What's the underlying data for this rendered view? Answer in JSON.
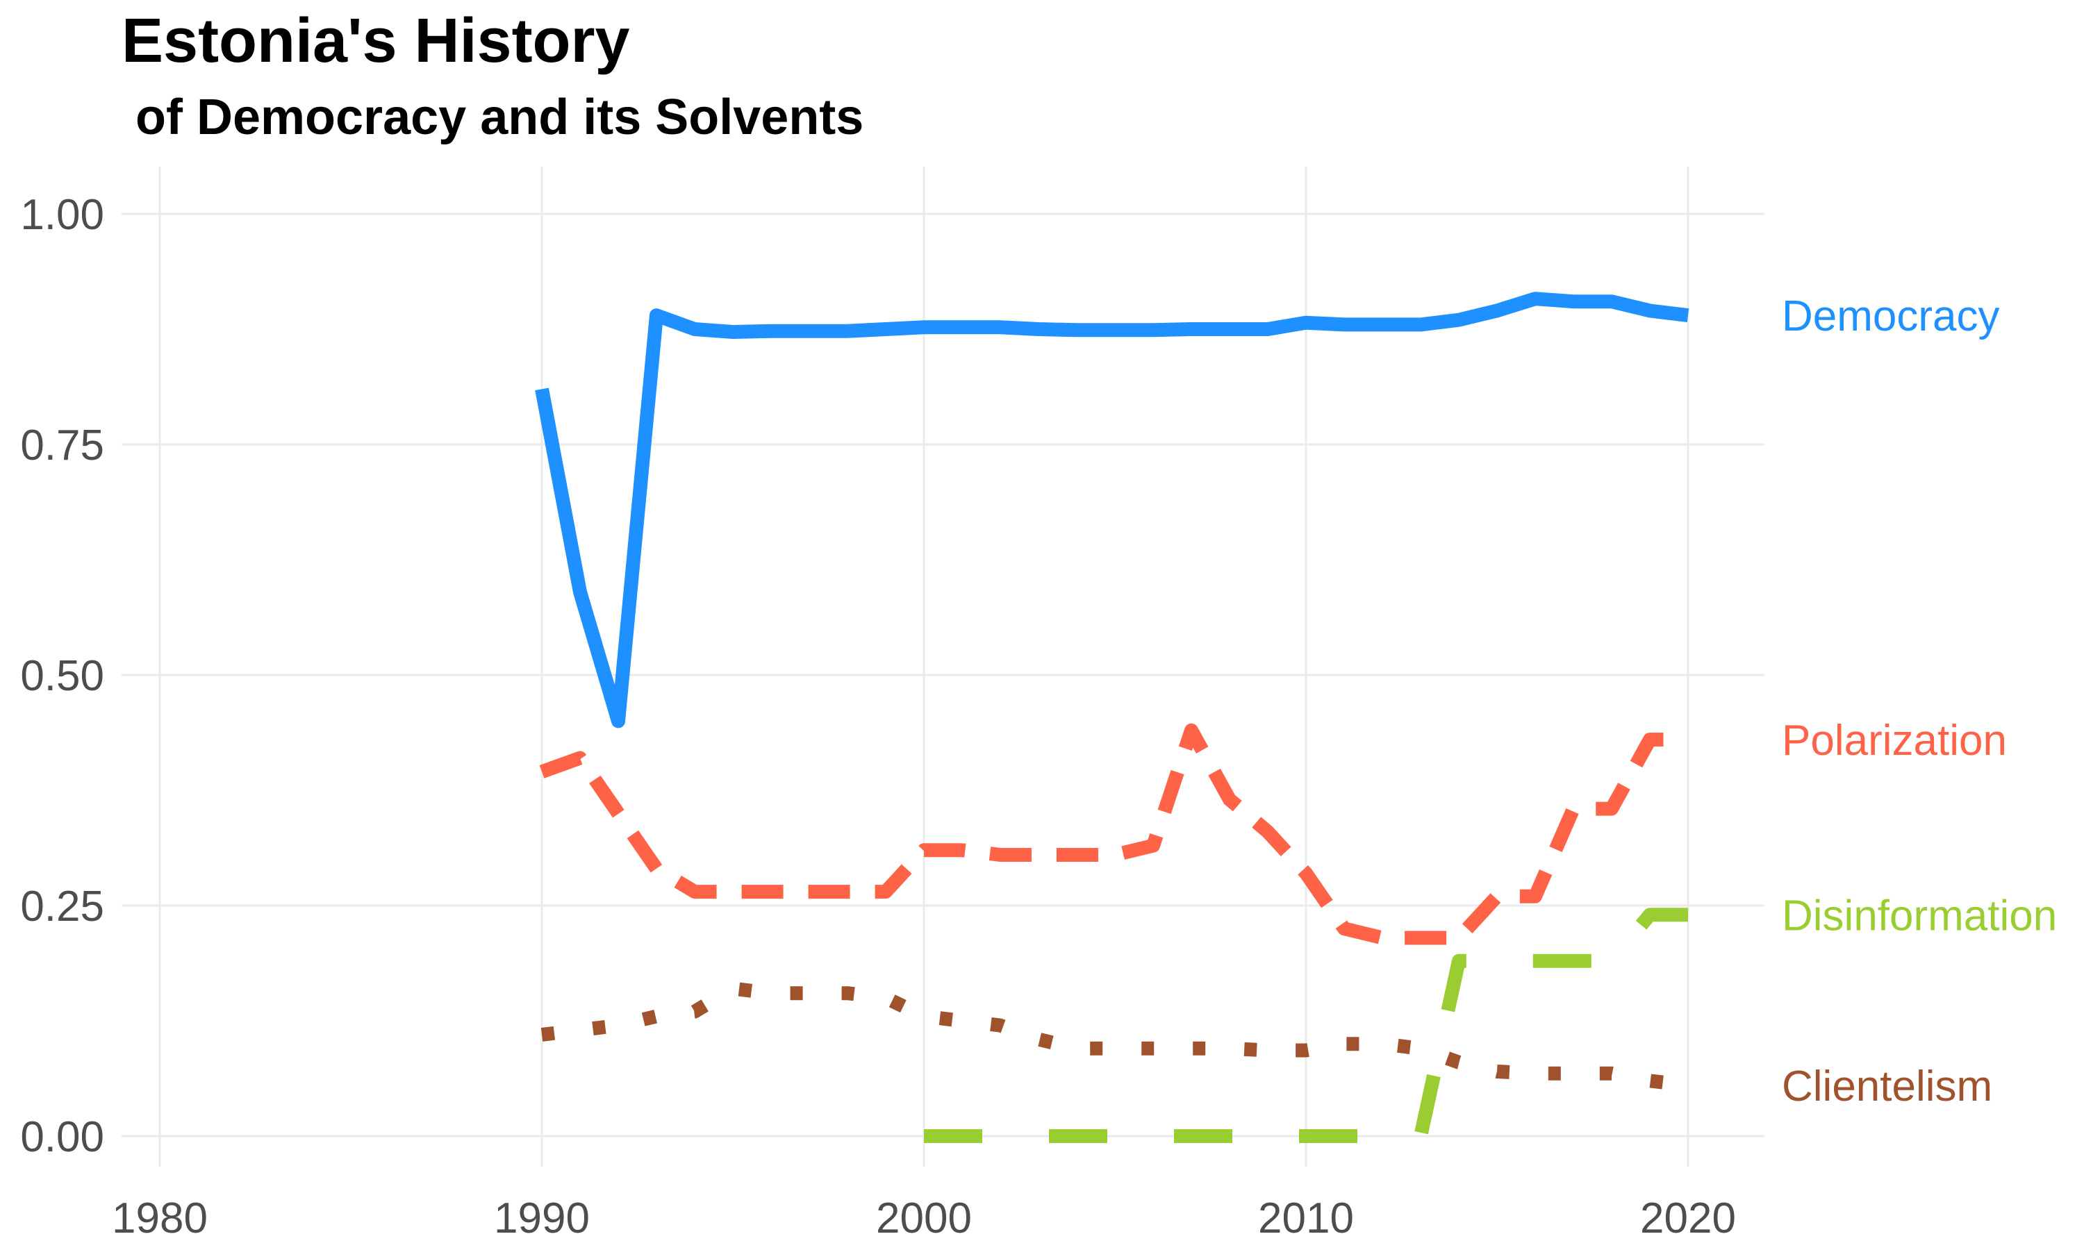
{
  "chart_data": {
    "type": "line",
    "title": "Estonia's History",
    "subtitle": " of Democracy and its Solvents",
    "xlabel": "",
    "ylabel": "",
    "xlim": [
      1980,
      2022
    ],
    "ylim": [
      0,
      1.0
    ],
    "x_ticks": [
      1980,
      1990,
      2000,
      2010,
      2020
    ],
    "x_tick_labels": [
      "1980",
      "1990",
      "2000",
      "2010",
      "2020"
    ],
    "y_ticks": [
      0,
      0.25,
      0.5,
      0.75,
      1.0
    ],
    "y_tick_labels": [
      "0.00",
      "0.25",
      "0.50",
      "0.75",
      "1.00"
    ],
    "grid": true,
    "legend": "direct labels at line ends (right)",
    "series": [
      {
        "name": "Democracy",
        "color": "#1E90FF",
        "style": "solid",
        "x": [
          1990,
          1991,
          1992,
          1993,
          1994,
          1995,
          1996,
          1997,
          1998,
          1999,
          2000,
          2001,
          2002,
          2003,
          2004,
          2005,
          2006,
          2007,
          2008,
          2009,
          2010,
          2011,
          2012,
          2013,
          2014,
          2015,
          2016,
          2017,
          2018,
          2019,
          2020
        ],
        "y": [
          0.81,
          0.59,
          0.45,
          0.89,
          0.875,
          0.872,
          0.873,
          0.873,
          0.873,
          0.875,
          0.877,
          0.877,
          0.877,
          0.875,
          0.874,
          0.874,
          0.874,
          0.875,
          0.875,
          0.875,
          0.882,
          0.88,
          0.88,
          0.88,
          0.885,
          0.895,
          0.908,
          0.905,
          0.905,
          0.895,
          0.89
        ]
      },
      {
        "name": "Polarization",
        "color": "#FF6347",
        "style": "dashed",
        "x": [
          1990,
          1991,
          1992,
          1993,
          1994,
          1995,
          1996,
          1997,
          1998,
          1999,
          2000,
          2001,
          2002,
          2003,
          2004,
          2005,
          2006,
          2007,
          2008,
          2009,
          2010,
          2011,
          2012,
          2013,
          2014,
          2015,
          2016,
          2017,
          2018,
          2019,
          2020
        ],
        "y": [
          0.395,
          0.41,
          0.35,
          0.29,
          0.265,
          0.265,
          0.265,
          0.265,
          0.265,
          0.265,
          0.31,
          0.31,
          0.305,
          0.305,
          0.305,
          0.305,
          0.315,
          0.44,
          0.365,
          0.33,
          0.285,
          0.225,
          0.215,
          0.215,
          0.215,
          0.26,
          0.26,
          0.355,
          0.355,
          0.43,
          0.43
        ]
      },
      {
        "name": "Disinformation",
        "color": "#9ACD32",
        "style": "longdash",
        "x": [
          2000,
          2001,
          2002,
          2003,
          2004,
          2005,
          2006,
          2007,
          2008,
          2009,
          2010,
          2011,
          2012,
          2013,
          2014,
          2015,
          2016,
          2017,
          2018,
          2019,
          2020
        ],
        "y": [
          0.0,
          0.0,
          0.0,
          0.0,
          0.0,
          0.0,
          0.0,
          0.0,
          0.0,
          0.0,
          0.0,
          0.0,
          0.0,
          0.0,
          0.19,
          0.19,
          0.19,
          0.19,
          0.19,
          0.24,
          0.24
        ]
      },
      {
        "name": "Clientelism",
        "color": "#A0522D",
        "style": "dotted",
        "x": [
          1990,
          1991,
          1992,
          1993,
          1994,
          1995,
          1996,
          1997,
          1998,
          1999,
          2000,
          2001,
          2002,
          2003,
          2004,
          2005,
          2006,
          2007,
          2008,
          2009,
          2010,
          2011,
          2012,
          2013,
          2014,
          2015,
          2016,
          2017,
          2018,
          2019,
          2020
        ],
        "y": [
          0.11,
          0.115,
          0.12,
          0.13,
          0.135,
          0.16,
          0.155,
          0.155,
          0.155,
          0.15,
          0.13,
          0.125,
          0.12,
          0.105,
          0.095,
          0.095,
          0.095,
          0.095,
          0.095,
          0.093,
          0.093,
          0.1,
          0.1,
          0.095,
          0.08,
          0.07,
          0.068,
          0.068,
          0.068,
          0.06,
          0.055
        ]
      }
    ]
  }
}
